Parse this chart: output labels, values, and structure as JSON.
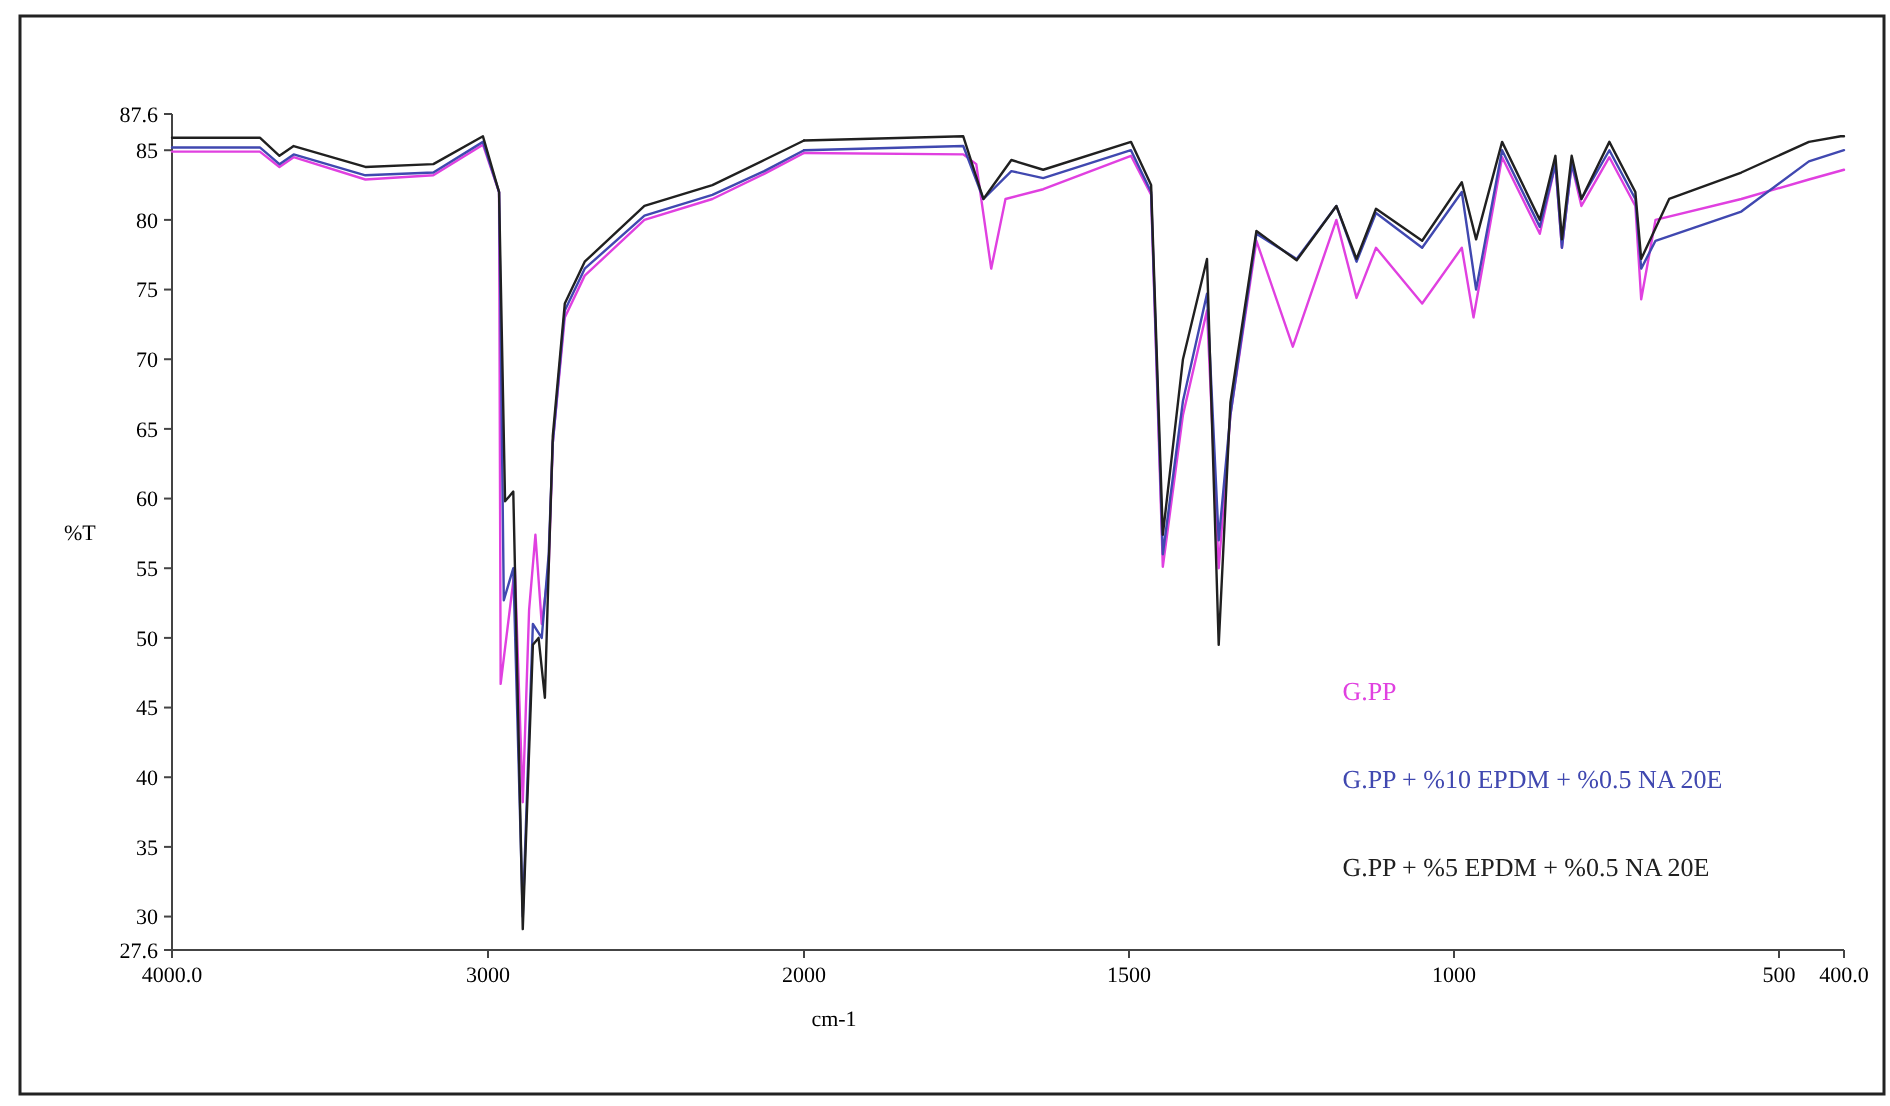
{
  "chart_data": [
    {
      "type": "line",
      "ylabel": "%T",
      "xlim": [
        4000,
        2000
      ],
      "xticks": [
        {
          "value": 4000,
          "label": "4000.0"
        },
        3000,
        {
          "value": 2000,
          "label": null
        }
      ],
      "ylim": [
        27.6,
        87.6
      ],
      "yticks": [
        27.6,
        30,
        35,
        40,
        45,
        50,
        55,
        60,
        65,
        70,
        75,
        80,
        85,
        87.6
      ],
      "grid": false,
      "marker": "none",
      "line_style": "solid",
      "series": [
        {
          "color": "#e040e0",
          "x": [
            4000,
            3722,
            3660,
            3615,
            3388,
            3173,
            3016,
            2965,
            2960,
            2915,
            2890,
            2870,
            2850,
            2830,
            2808,
            2795,
            2757,
            2694,
            2505,
            2290,
            2126,
            2000
          ],
          "values": [
            84.9,
            84.9,
            83.8,
            84.5,
            82.9,
            83.2,
            85.4,
            82,
            46.7,
            55,
            38.2,
            52,
            57.4,
            51,
            55,
            64,
            73,
            76,
            80,
            81.5,
            83.3,
            84.8
          ]
        },
        {
          "color": "#4048b0",
          "x": [
            4000,
            3722,
            3660,
            3615,
            3388,
            3173,
            3016,
            2965,
            2950,
            2920,
            2890,
            2858,
            2830,
            2808,
            2795,
            2757,
            2694,
            2505,
            2290,
            2126,
            2000
          ],
          "values": [
            85.2,
            85.2,
            84,
            84.7,
            83.2,
            83.4,
            85.6,
            82,
            52.7,
            55,
            30,
            51,
            50,
            56,
            64,
            73.5,
            76.5,
            80.3,
            81.8,
            83.5,
            85
          ]
        },
        {
          "color": "#202020",
          "x": [
            4000,
            3722,
            3660,
            3615,
            3388,
            3173,
            3016,
            2965,
            2946,
            2920,
            2890,
            2858,
            2840,
            2820,
            2808,
            2795,
            2757,
            2694,
            2505,
            2290,
            2126,
            2000
          ],
          "values": [
            85.9,
            85.9,
            84.6,
            85.3,
            83.8,
            84,
            86,
            82,
            59.8,
            60.5,
            29.1,
            49.5,
            50,
            45.7,
            55,
            64.5,
            74,
            77,
            81,
            82.5,
            84.3,
            85.7
          ]
        }
      ]
    },
    {
      "type": "line",
      "xlabel": "cm-1",
      "xlim": [
        2000,
        400
      ],
      "xticks": [
        2000,
        1500,
        1000,
        500,
        {
          "value": 400,
          "label": "400.0"
        }
      ],
      "ylim": [
        27.6,
        87.6
      ],
      "tick_labels": "x",
      "legend": "bottom right",
      "grid": false,
      "marker": "none",
      "line_style": "solid",
      "series": [
        {
          "name": "G.PP",
          "color": "#e040e0",
          "x": [
            2000,
            1755,
            1735,
            1712,
            1690,
            1632,
            1497,
            1466,
            1448,
            1417,
            1380,
            1362,
            1344,
            1304,
            1248,
            1181,
            1150,
            1120,
            1049,
            988,
            970,
            926,
            868,
            844,
            834,
            819,
            804,
            761,
            721,
            712,
            690,
            558,
            454,
            400
          ],
          "values": [
            84.8,
            84.7,
            84,
            76.5,
            81.5,
            82.2,
            84.6,
            81.8,
            55.1,
            66,
            73.5,
            55,
            66,
            78.5,
            70.9,
            80,
            74.4,
            78,
            74,
            78,
            73,
            84.5,
            79,
            84,
            78,
            84,
            81,
            84.5,
            81,
            74.3,
            80,
            81.5,
            82.9,
            83.6
          ]
        },
        {
          "name": "G.PP + %10 EPDM + %0.5 NA 20E",
          "color": "#4048b0",
          "x": [
            2000,
            1755,
            1724,
            1681,
            1632,
            1497,
            1466,
            1448,
            1417,
            1380,
            1362,
            1344,
            1304,
            1242,
            1181,
            1150,
            1120,
            1049,
            988,
            966,
            926,
            868,
            844,
            834,
            819,
            804,
            761,
            721,
            712,
            690,
            558,
            454,
            400
          ],
          "values": [
            85,
            85.3,
            81.5,
            83.5,
            83,
            85,
            82,
            56,
            67,
            74.7,
            57,
            66,
            79,
            77.2,
            81,
            77,
            80.5,
            78,
            82,
            75,
            85,
            79.5,
            84,
            78,
            84,
            81.5,
            85,
            81.5,
            76.5,
            78.5,
            80.6,
            84.2,
            85
          ]
        },
        {
          "name": "G.PP + %5 EPDM + %0.5 NA 20E",
          "color": "#202020",
          "x": [
            2000,
            1755,
            1724,
            1681,
            1632,
            1497,
            1466,
            1448,
            1417,
            1380,
            1362,
            1344,
            1304,
            1242,
            1181,
            1150,
            1120,
            1049,
            988,
            966,
            926,
            868,
            844,
            834,
            819,
            804,
            761,
            721,
            712,
            669,
            558,
            454,
            405,
            400
          ],
          "values": [
            85.7,
            86,
            81.5,
            84.3,
            83.6,
            85.6,
            82.5,
            57.4,
            70,
            77.2,
            49.5,
            66.9,
            79.2,
            77.1,
            81,
            77.2,
            80.8,
            78.5,
            82.7,
            78.6,
            85.6,
            80,
            84.6,
            78.6,
            84.6,
            81.5,
            85.6,
            82,
            77.2,
            81.5,
            83.4,
            85.6,
            86,
            86
          ]
        }
      ]
    }
  ]
}
